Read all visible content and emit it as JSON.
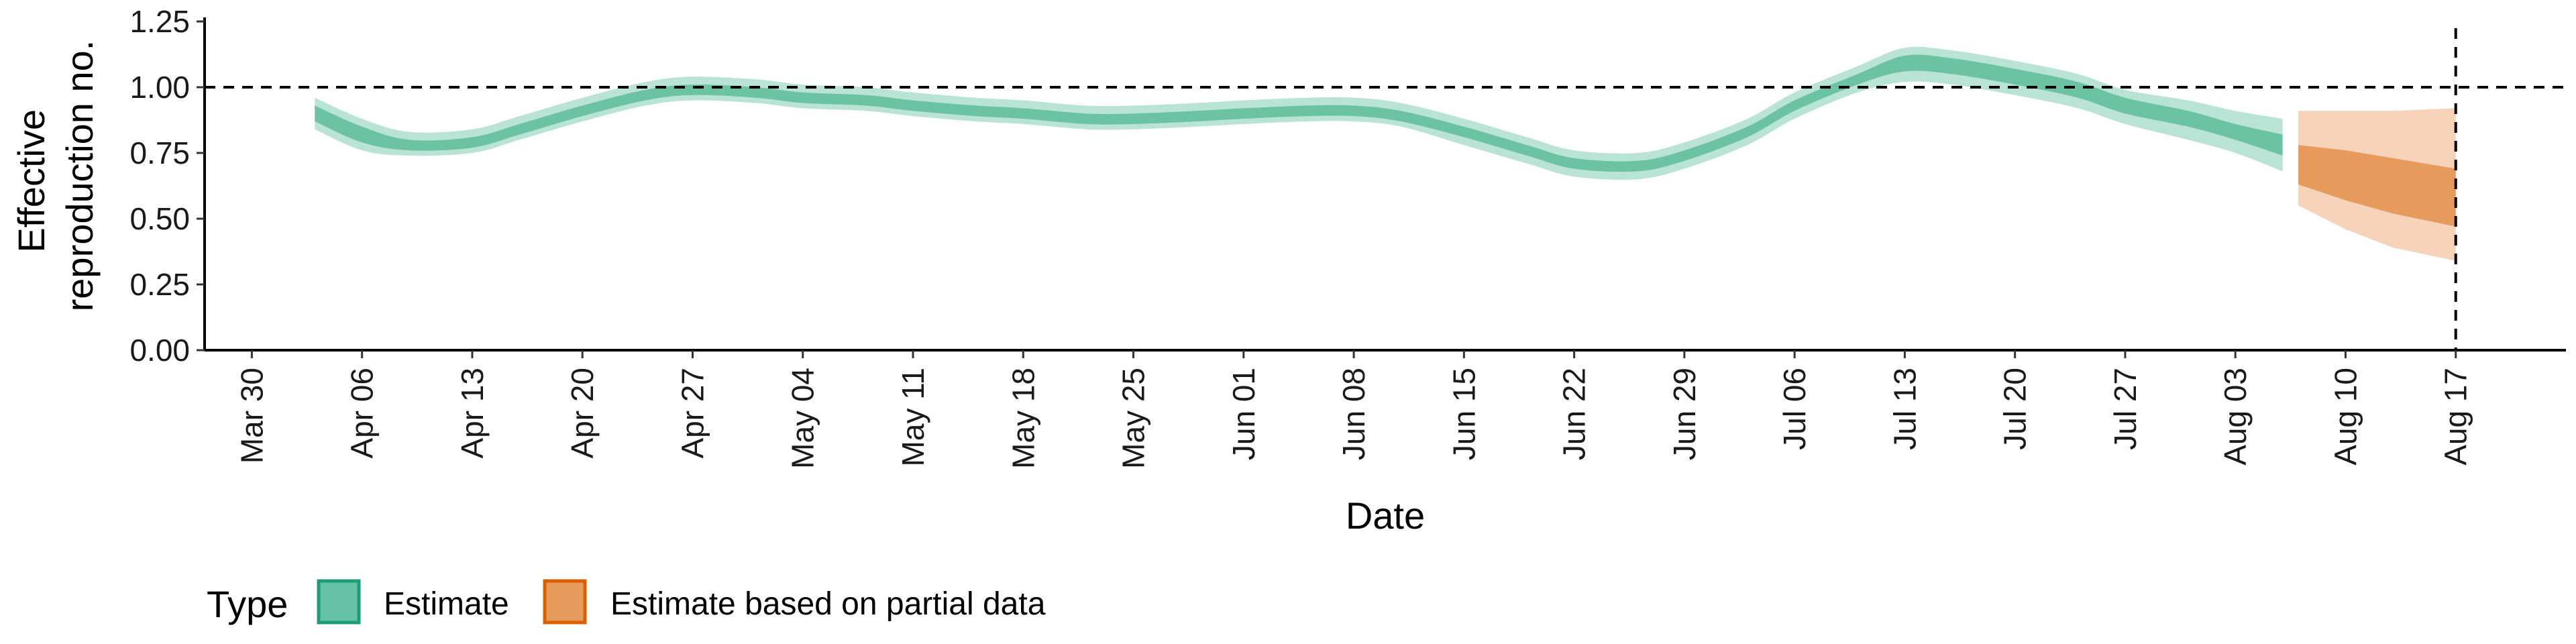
{
  "chart_data": {
    "type": "area",
    "xlabel": "Date",
    "ylabel_lines": [
      "Effective",
      "reproduction no."
    ],
    "y_ticks": [
      "0.00",
      "0.25",
      "0.50",
      "0.75",
      "1.00",
      "1.25"
    ],
    "ylim": [
      0,
      1.25
    ],
    "x_ticks": [
      "Mar 30",
      "Apr 06",
      "Apr 13",
      "Apr 20",
      "Apr 27",
      "May 04",
      "May 11",
      "May 18",
      "May 25",
      "Jun 01",
      "Jun 08",
      "Jun 15",
      "Jun 22",
      "Jun 29",
      "Jul 06",
      "Jul 13",
      "Jul 20",
      "Jul 27",
      "Aug 03",
      "Aug 10",
      "Aug 17"
    ],
    "xlim": [
      "2020-03-27",
      "2020-08-24"
    ],
    "reference_hline": 1.0,
    "reference_vline": "2020-08-17",
    "legend": {
      "title": "Type",
      "position": "bottom-left",
      "items": [
        {
          "label": "Estimate",
          "color": "#1b9e77",
          "fill": "#66c2a5"
        },
        {
          "label": "Estimate based on partial data",
          "color": "#d95f02",
          "fill": "#e69a5b"
        }
      ]
    },
    "series": [
      {
        "name": "Estimate",
        "color": "#66c2a5",
        "x": [
          "2020-04-03",
          "2020-04-06",
          "2020-04-09",
          "2020-04-13",
          "2020-04-16",
          "2020-04-20",
          "2020-04-24",
          "2020-04-27",
          "2020-05-01",
          "2020-05-04",
          "2020-05-08",
          "2020-05-11",
          "2020-05-15",
          "2020-05-18",
          "2020-05-22",
          "2020-05-25",
          "2020-05-29",
          "2020-06-01",
          "2020-06-05",
          "2020-06-08",
          "2020-06-11",
          "2020-06-15",
          "2020-06-19",
          "2020-06-22",
          "2020-06-26",
          "2020-06-29",
          "2020-07-03",
          "2020-07-06",
          "2020-07-10",
          "2020-07-13",
          "2020-07-16",
          "2020-07-20",
          "2020-07-24",
          "2020-07-27",
          "2020-07-31",
          "2020-08-03",
          "2020-08-06"
        ],
        "median": [
          0.9,
          0.82,
          0.78,
          0.79,
          0.84,
          0.91,
          0.97,
          0.99,
          0.98,
          0.96,
          0.95,
          0.93,
          0.91,
          0.9,
          0.88,
          0.88,
          0.89,
          0.9,
          0.91,
          0.91,
          0.89,
          0.83,
          0.76,
          0.71,
          0.7,
          0.74,
          0.83,
          0.93,
          1.03,
          1.09,
          1.08,
          1.04,
          0.99,
          0.93,
          0.88,
          0.83,
          0.78
        ],
        "lower_50": [
          0.87,
          0.79,
          0.76,
          0.77,
          0.82,
          0.89,
          0.95,
          0.97,
          0.96,
          0.94,
          0.93,
          0.91,
          0.89,
          0.88,
          0.86,
          0.86,
          0.87,
          0.88,
          0.89,
          0.89,
          0.87,
          0.81,
          0.74,
          0.69,
          0.68,
          0.72,
          0.81,
          0.91,
          1.01,
          1.06,
          1.05,
          1.01,
          0.96,
          0.9,
          0.85,
          0.8,
          0.74
        ],
        "upper_50": [
          0.93,
          0.85,
          0.8,
          0.81,
          0.86,
          0.93,
          0.99,
          1.01,
          1.0,
          0.98,
          0.97,
          0.95,
          0.93,
          0.92,
          0.9,
          0.9,
          0.91,
          0.92,
          0.93,
          0.93,
          0.91,
          0.85,
          0.78,
          0.73,
          0.72,
          0.76,
          0.85,
          0.95,
          1.05,
          1.12,
          1.11,
          1.07,
          1.02,
          0.96,
          0.91,
          0.86,
          0.82
        ],
        "lower_90": [
          0.84,
          0.76,
          0.74,
          0.75,
          0.8,
          0.87,
          0.93,
          0.95,
          0.94,
          0.92,
          0.91,
          0.89,
          0.87,
          0.86,
          0.84,
          0.84,
          0.85,
          0.86,
          0.87,
          0.87,
          0.85,
          0.78,
          0.71,
          0.66,
          0.65,
          0.69,
          0.78,
          0.88,
          0.98,
          1.02,
          1.01,
          0.97,
          0.92,
          0.86,
          0.8,
          0.75,
          0.68
        ],
        "upper_90": [
          0.96,
          0.88,
          0.83,
          0.84,
          0.89,
          0.96,
          1.02,
          1.04,
          1.03,
          1.01,
          1.0,
          0.98,
          0.96,
          0.95,
          0.93,
          0.93,
          0.94,
          0.95,
          0.96,
          0.96,
          0.94,
          0.88,
          0.81,
          0.76,
          0.75,
          0.79,
          0.88,
          0.98,
          1.08,
          1.15,
          1.14,
          1.1,
          1.05,
          0.99,
          0.95,
          0.91,
          0.88
        ]
      },
      {
        "name": "Estimate based on partial data",
        "color": "#e69a5b",
        "x": [
          "2020-08-07",
          "2020-08-10",
          "2020-08-13",
          "2020-08-17"
        ],
        "median": [
          0.7,
          0.66,
          0.62,
          0.58
        ],
        "lower_50": [
          0.63,
          0.57,
          0.52,
          0.47
        ],
        "upper_50": [
          0.78,
          0.76,
          0.73,
          0.69
        ],
        "lower_90": [
          0.55,
          0.46,
          0.39,
          0.34
        ],
        "upper_90": [
          0.91,
          0.91,
          0.91,
          0.92
        ]
      }
    ]
  }
}
